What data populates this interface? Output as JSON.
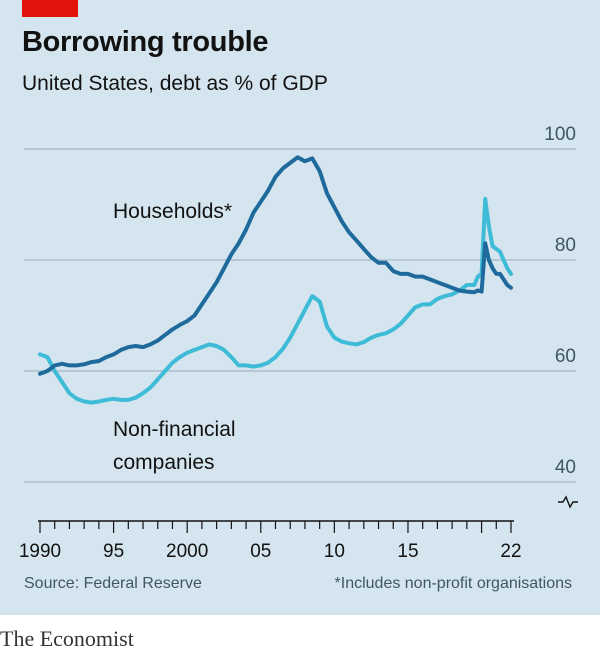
{
  "header": {
    "title": "Borrowing trouble",
    "subtitle": "United States, debt as % of GDP"
  },
  "footer": {
    "source": "Source: Federal Reserve",
    "footnote": "*Includes non-profit organisations",
    "brand": "The Economist"
  },
  "colors": {
    "background": "#d5e5ef",
    "households": "#1f6a9c",
    "companies": "#3ebbd6",
    "gridline": "#a5b8c2",
    "accent": "#e3120b"
  },
  "chart_data": {
    "type": "line",
    "title": "Borrowing trouble",
    "subtitle": "United States, debt as % of GDP",
    "xlabel": "",
    "ylabel": "",
    "xlim": [
      1989.5,
      2022.5
    ],
    "ylim": [
      40,
      100
    ],
    "y_axis_side": "right",
    "y_axis_break": true,
    "grid": "horizontal",
    "legend": "inline-labels",
    "y_ticks": [
      "100",
      "80",
      "60",
      "40"
    ],
    "x_tick_labels": [
      "1990",
      "95",
      "2000",
      "05",
      "10",
      "15",
      "22"
    ],
    "series": [
      {
        "name": "Households*",
        "color": "#1f6a9c",
        "x": [
          1990.0,
          1990.5,
          1991.0,
          1991.5,
          1992.0,
          1992.5,
          1993.0,
          1993.5,
          1994.0,
          1994.5,
          1995.0,
          1995.5,
          1996.0,
          1996.5,
          1997.0,
          1997.5,
          1998.0,
          1998.5,
          1999.0,
          1999.5,
          2000.0,
          2000.5,
          2001.0,
          2001.5,
          2002.0,
          2002.5,
          2003.0,
          2003.5,
          2004.0,
          2004.5,
          2005.0,
          2005.5,
          2006.0,
          2006.5,
          2007.0,
          2007.5,
          2008.0,
          2008.5,
          2009.0,
          2009.5,
          2010.0,
          2010.5,
          2011.0,
          2011.5,
          2012.0,
          2012.5,
          2013.0,
          2013.5,
          2014.0,
          2014.5,
          2015.0,
          2015.5,
          2016.0,
          2016.5,
          2017.0,
          2017.5,
          2018.0,
          2018.5,
          2019.0,
          2019.5,
          2019.75,
          2020.0,
          2020.25,
          2020.5,
          2020.75,
          2021.0,
          2021.25,
          2021.5,
          2021.75,
          2022.0
        ],
        "values": [
          59.5,
          60.0,
          61.0,
          61.3,
          61.0,
          61.0,
          61.2,
          61.6,
          61.8,
          62.5,
          63.0,
          63.8,
          64.3,
          64.5,
          64.3,
          64.8,
          65.5,
          66.5,
          67.5,
          68.3,
          69.0,
          70.0,
          72.0,
          74.0,
          76.0,
          78.5,
          81.0,
          83.0,
          85.5,
          88.5,
          90.5,
          92.5,
          95.0,
          96.5,
          97.5,
          98.5,
          97.8,
          98.3,
          96.0,
          92.0,
          89.5,
          87.0,
          85.0,
          83.5,
          82.0,
          80.5,
          79.5,
          79.5,
          78.0,
          77.5,
          77.5,
          77.0,
          77.0,
          76.5,
          76.0,
          75.5,
          75.0,
          74.5,
          74.3,
          74.2,
          74.5,
          74.3,
          83.0,
          80.0,
          78.5,
          77.5,
          77.5,
          76.5,
          75.5,
          75.0
        ]
      },
      {
        "name": "Non-financial companies",
        "color": "#3ebbd6",
        "x": [
          1990.0,
          1990.5,
          1991.0,
          1991.5,
          1992.0,
          1992.5,
          1993.0,
          1993.5,
          1994.0,
          1994.5,
          1995.0,
          1995.5,
          1996.0,
          1996.5,
          1997.0,
          1997.5,
          1998.0,
          1998.5,
          1999.0,
          1999.5,
          2000.0,
          2000.5,
          2001.0,
          2001.5,
          2002.0,
          2002.5,
          2003.0,
          2003.5,
          2004.0,
          2004.5,
          2005.0,
          2005.5,
          2006.0,
          2006.5,
          2007.0,
          2007.5,
          2008.0,
          2008.5,
          2009.0,
          2009.5,
          2010.0,
          2010.5,
          2011.0,
          2011.5,
          2012.0,
          2012.5,
          2013.0,
          2013.5,
          2014.0,
          2014.5,
          2015.0,
          2015.5,
          2016.0,
          2016.5,
          2017.0,
          2017.5,
          2018.0,
          2018.5,
          2019.0,
          2019.5,
          2019.75,
          2020.0,
          2020.25,
          2020.5,
          2020.75,
          2021.0,
          2021.25,
          2021.5,
          2021.75,
          2022.0
        ],
        "values": [
          63.0,
          62.5,
          60.0,
          58.0,
          56.0,
          55.0,
          54.5,
          54.3,
          54.5,
          54.8,
          55.0,
          54.8,
          54.8,
          55.2,
          56.0,
          57.0,
          58.5,
          60.0,
          61.5,
          62.5,
          63.3,
          63.8,
          64.3,
          64.8,
          64.5,
          63.8,
          62.5,
          61.0,
          61.0,
          60.8,
          61.0,
          61.5,
          62.5,
          64.0,
          66.0,
          68.5,
          71.0,
          73.5,
          72.5,
          68.0,
          66.0,
          65.3,
          65.0,
          64.8,
          65.2,
          66.0,
          66.5,
          66.8,
          67.5,
          68.5,
          70.0,
          71.5,
          72.0,
          72.0,
          73.0,
          73.5,
          73.8,
          74.5,
          75.5,
          75.5,
          77.0,
          77.5,
          91.0,
          86.0,
          82.5,
          82.0,
          81.5,
          80.0,
          78.5,
          77.5
        ]
      }
    ],
    "annotations": [
      {
        "text": "Households*",
        "series": "Households*"
      },
      {
        "text": "Non-financial",
        "series": "Non-financial companies"
      },
      {
        "text": "companies",
        "series": "Non-financial companies"
      }
    ]
  }
}
